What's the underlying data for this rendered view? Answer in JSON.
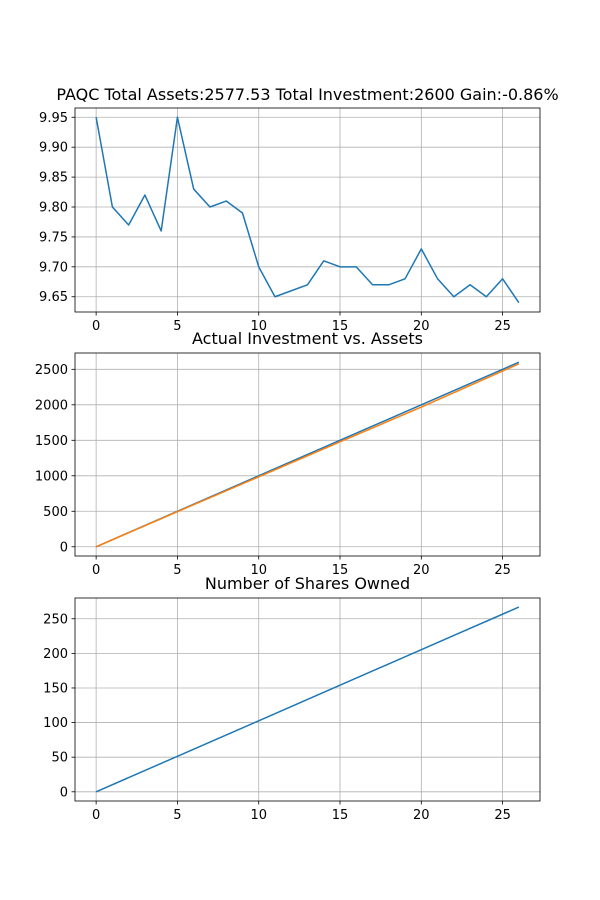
{
  "figure": {
    "background": "#ffffff",
    "grid_color": "#b0b0b0"
  },
  "chart_data": [
    {
      "type": "line",
      "title": "PAQC Total Assets:2577.53  Total Investment:2600  Gain:-0.86%",
      "xlabel": "",
      "ylabel": "",
      "grid": true,
      "xlim": [
        -1.3,
        27.3
      ],
      "ylim": [
        9.6245,
        9.9655
      ],
      "xticks": [
        0,
        5,
        10,
        15,
        20,
        25
      ],
      "yticks": [
        9.65,
        9.7,
        9.75,
        9.8,
        9.85,
        9.9,
        9.95
      ],
      "ytick_labels": [
        "9.65",
        "9.70",
        "9.75",
        "9.80",
        "9.85",
        "9.90",
        "9.95"
      ],
      "series": [
        {
          "color": "#1f77b4",
          "x": [
            0,
            1,
            2,
            3,
            4,
            5,
            6,
            7,
            8,
            9,
            10,
            11,
            12,
            13,
            14,
            15,
            16,
            17,
            18,
            19,
            20,
            21,
            22,
            23,
            24,
            25,
            26
          ],
          "values": [
            9.95,
            9.8,
            9.77,
            9.82,
            9.76,
            9.95,
            9.83,
            9.8,
            9.81,
            9.79,
            9.7,
            9.65,
            9.66,
            9.67,
            9.71,
            9.7,
            9.7,
            9.67,
            9.67,
            9.68,
            9.73,
            9.68,
            9.65,
            9.67,
            9.65,
            9.68,
            9.64
          ]
        }
      ]
    },
    {
      "type": "line",
      "title": "Actual Investment vs. Assets",
      "xlabel": "",
      "ylabel": "",
      "grid": true,
      "xlim": [
        -1.3,
        27.3
      ],
      "ylim": [
        -130,
        2730
      ],
      "xticks": [
        0,
        5,
        10,
        15,
        20,
        25
      ],
      "yticks": [
        0,
        500,
        1000,
        1500,
        2000,
        2500
      ],
      "ytick_labels": [
        "0",
        "500",
        "1000",
        "1500",
        "2000",
        "2500"
      ],
      "series": [
        {
          "color": "#1f77b4",
          "x": [
            0,
            26
          ],
          "values": [
            0,
            2600
          ]
        },
        {
          "color": "#ff7f0e",
          "x": [
            0,
            5,
            10,
            15,
            20,
            26
          ],
          "values": [
            0,
            495,
            985,
            1478,
            1968,
            2577.53
          ]
        }
      ]
    },
    {
      "type": "line",
      "title": "Number of Shares Owned",
      "xlabel": "",
      "ylabel": "",
      "grid": true,
      "xlim": [
        -1.3,
        27.3
      ],
      "ylim": [
        -13.3,
        280
      ],
      "xticks": [
        0,
        5,
        10,
        15,
        20,
        25
      ],
      "yticks": [
        0,
        50,
        100,
        150,
        200,
        250
      ],
      "ytick_labels": [
        "0",
        "50",
        "100",
        "150",
        "200",
        "250"
      ],
      "series": [
        {
          "color": "#1f77b4",
          "x": [
            0,
            5,
            10,
            15,
            20,
            26
          ],
          "values": [
            0,
            51.3,
            102.6,
            154,
            205.4,
            266.9
          ]
        }
      ]
    }
  ]
}
